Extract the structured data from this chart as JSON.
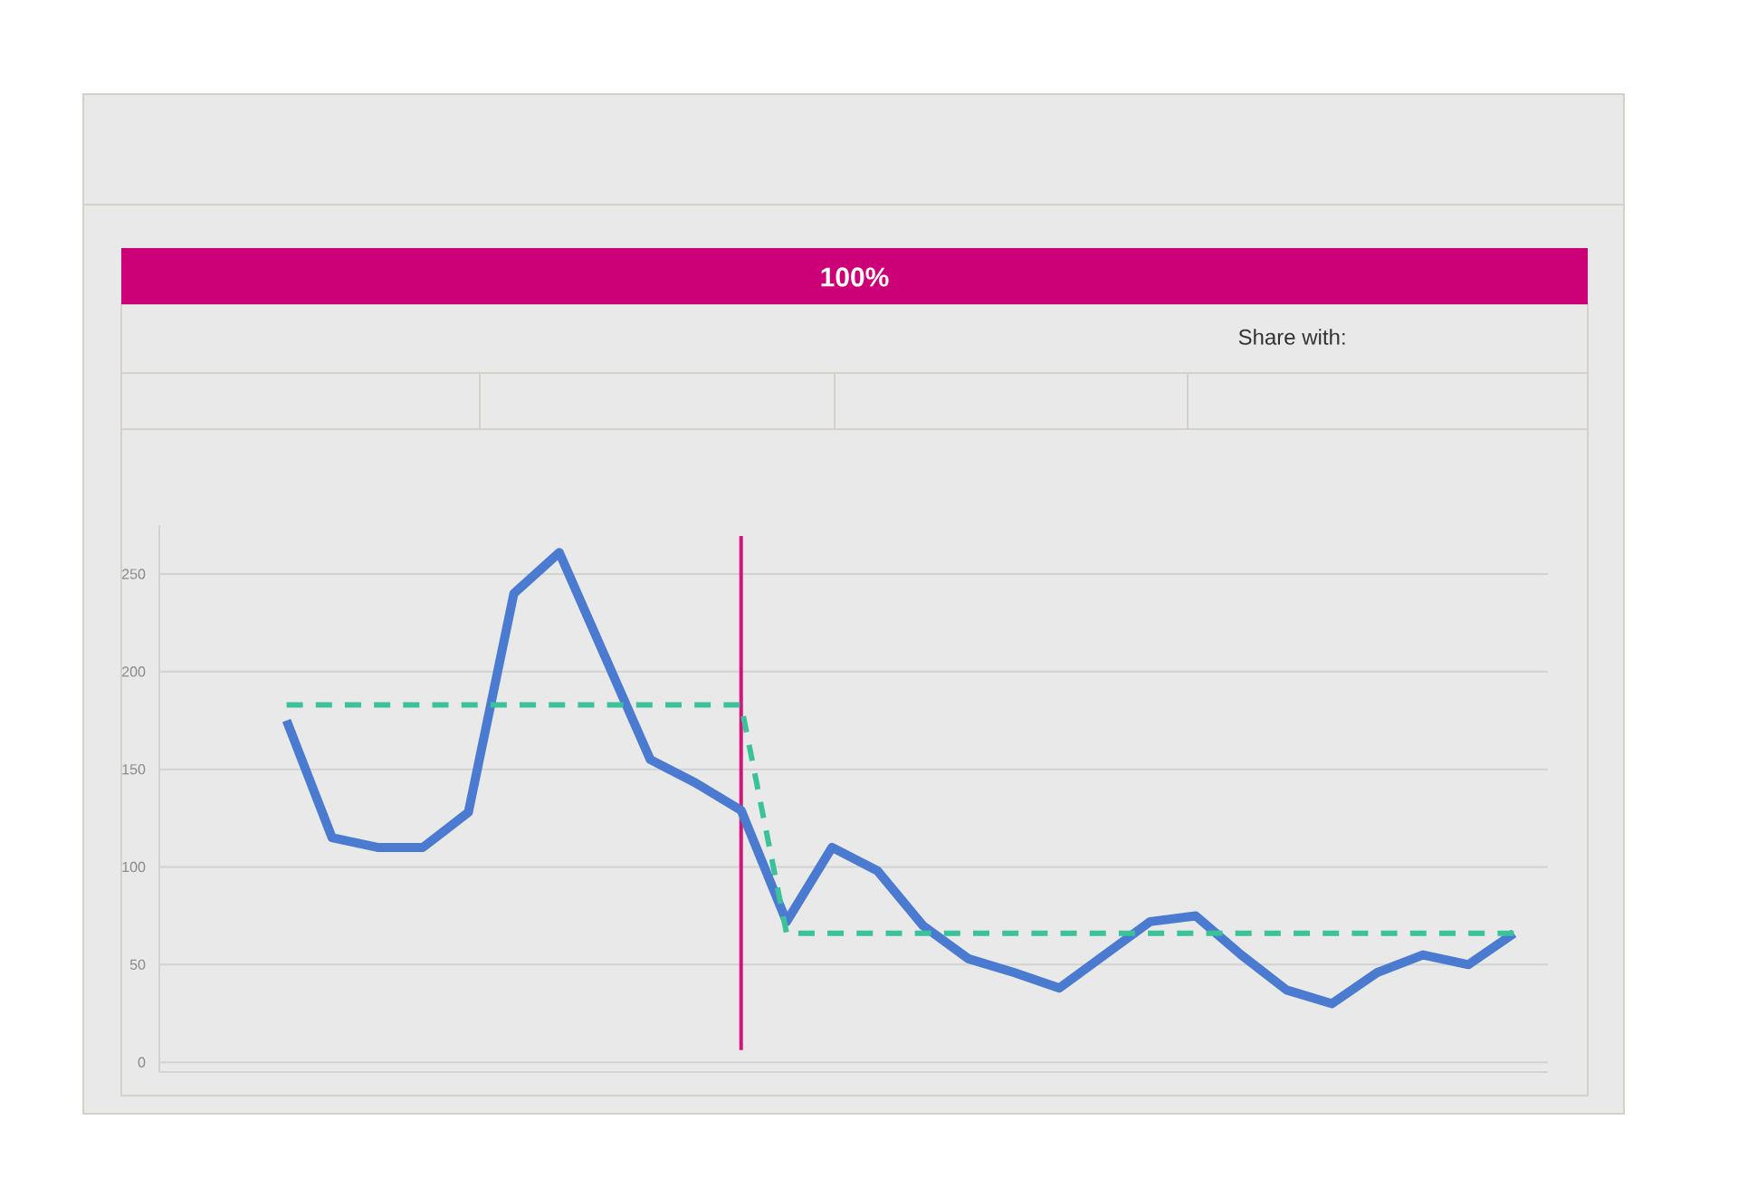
{
  "chart_data": {
    "type": "line",
    "categories": [
      null,
      null,
      null,
      null,
      null,
      null,
      null,
      null,
      null,
      null,
      null,
      null,
      null,
      null,
      null,
      null,
      null,
      null,
      null,
      null,
      null,
      null,
      null,
      null,
      null,
      null,
      null,
      null
    ],
    "series": [
      {
        "color": "#4a7bd0",
        "values": [
          175,
          115,
          110,
          110,
          128,
          240,
          261,
          208,
          155,
          143,
          129,
          72,
          110,
          98,
          70,
          53,
          46,
          38,
          55,
          72,
          75,
          55,
          37,
          30,
          46,
          55,
          50,
          66
        ]
      },
      {
        "color": "#3cc29a",
        "line_style": "dashed",
        "values": [
          183,
          183,
          183,
          183,
          183,
          183,
          183,
          183,
          183,
          183,
          183,
          66,
          66,
          66,
          66,
          66,
          66,
          66,
          66,
          66,
          66,
          66,
          66,
          66,
          66,
          66,
          66,
          66
        ]
      }
    ],
    "ylim": [
      -5,
      275
    ],
    "yticks": [
      0,
      50,
      100,
      150,
      200,
      250
    ],
    "grid": "y",
    "tick_labels": "y",
    "annotations": [
      "100%",
      "Share with:"
    ]
  }
}
